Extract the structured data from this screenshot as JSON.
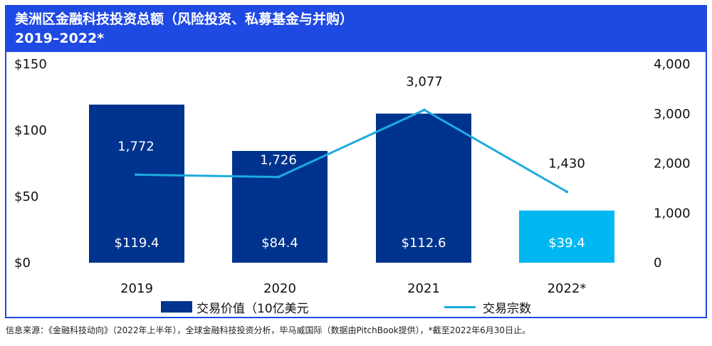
{
  "header": {
    "title": "美洲区金融科技投资总额（风险投资、私募基金与并购）",
    "subtitle": "2019–2022*"
  },
  "chart_data": {
    "type": "bar",
    "categories": [
      "2019",
      "2020",
      "2021",
      "2022*"
    ],
    "series": [
      {
        "name": "交易价值（10亿美元",
        "type": "bar",
        "axis": "left",
        "values": [
          119.4,
          84.4,
          112.6,
          39.4
        ],
        "labels": [
          "$119.4",
          "$84.4",
          "$112.6",
          "$39.4"
        ]
      },
      {
        "name": "交易宗数",
        "type": "line",
        "axis": "right",
        "values": [
          1772,
          1726,
          3077,
          1430
        ],
        "labels": [
          "1,772",
          "1,726",
          "3,077",
          "1,430"
        ]
      }
    ],
    "y_left": {
      "range": [
        0,
        150
      ],
      "ticks": [
        "$0",
        "$50",
        "$100",
        "$150"
      ]
    },
    "y_right": {
      "range": [
        0,
        4000
      ],
      "ticks": [
        "0",
        "1,000",
        "2,000",
        "3,000",
        "4,000"
      ]
    },
    "colors": {
      "bar": "#00338d",
      "bar_highlight": "#00b8f1",
      "line": "#1eaadf"
    }
  },
  "legend": {
    "bar_label": "交易价值（10亿美元",
    "line_label": "交易宗数"
  },
  "footnote": "信息来源：《金融科技动向》（2022年上半年），全球金融科技投资分析，毕马威国际（数据由PitchBook提供），*截至2022年6月30日止。"
}
